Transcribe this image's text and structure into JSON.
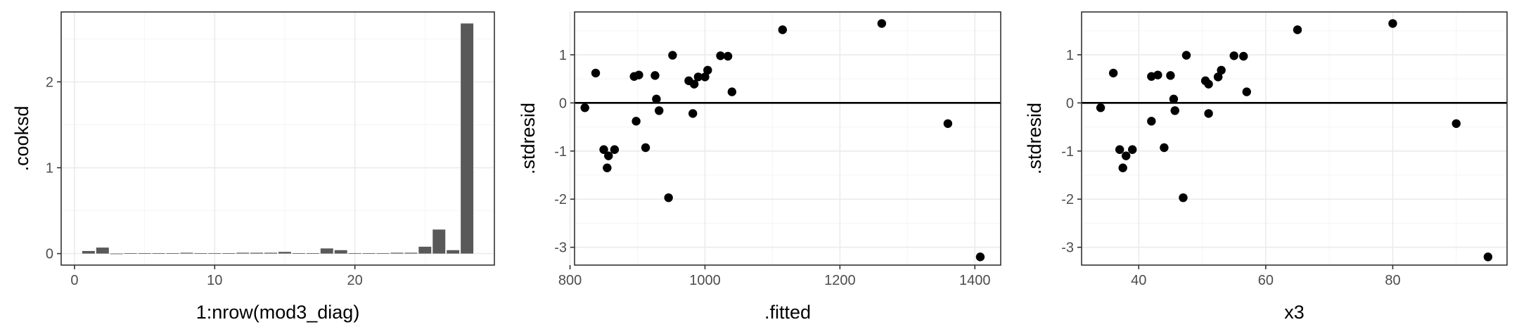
{
  "chart_data": [
    {
      "type": "bar",
      "xlabel": "1:nrow(mod3_diag)",
      "ylabel": ".cooksd",
      "x": [
        1,
        2,
        3,
        4,
        5,
        6,
        7,
        8,
        9,
        10,
        11,
        12,
        13,
        14,
        15,
        16,
        17,
        18,
        19,
        20,
        21,
        22,
        23,
        24,
        25,
        26,
        27,
        28
      ],
      "values": [
        0.03,
        0.07,
        0.0,
        0.005,
        0.005,
        0.005,
        0.005,
        0.01,
        0.005,
        0.005,
        0.005,
        0.01,
        0.01,
        0.01,
        0.02,
        0.005,
        0.005,
        0.06,
        0.04,
        0.005,
        0.005,
        0.005,
        0.01,
        0.01,
        0.08,
        0.28,
        0.04,
        2.68
      ],
      "xlim": [
        -0.95,
        29.95
      ],
      "ylim": [
        -0.134,
        2.814
      ],
      "xticks": [
        0,
        10,
        20
      ],
      "xtick_labels": [
        "0",
        "10",
        "20"
      ],
      "yticks": [
        0,
        1,
        2
      ],
      "ytick_labels": [
        "0",
        "1",
        "2"
      ],
      "grid": true
    },
    {
      "type": "scatter",
      "xlabel": ".fitted",
      "ylabel": ".stdresid",
      "x": [
        822,
        838,
        850,
        855,
        857,
        866,
        895,
        898,
        902,
        912,
        926,
        928,
        932,
        946,
        952,
        976,
        982,
        984,
        990,
        1000,
        1004,
        1023,
        1034,
        1040,
        1115,
        1262,
        1360,
        1408
      ],
      "y": [
        -0.1,
        0.62,
        -0.97,
        -1.35,
        -1.1,
        -0.97,
        0.55,
        -0.38,
        0.58,
        -0.93,
        0.57,
        0.08,
        -0.16,
        -1.97,
        0.99,
        0.46,
        -0.22,
        0.39,
        0.54,
        0.54,
        0.68,
        0.98,
        0.97,
        0.23,
        1.52,
        1.65,
        -0.43,
        -3.2
      ],
      "xlim": [
        806.7,
        1438.3
      ],
      "ylim": [
        -3.37,
        1.89
      ],
      "xticks": [
        800,
        1000,
        1200,
        1400
      ],
      "xtick_labels": [
        "800",
        "1000",
        "1200",
        "1400"
      ],
      "yticks": [
        -3,
        -2,
        -1,
        0,
        1
      ],
      "ytick_labels": [
        "-3",
        "-2",
        "-1",
        "0",
        "1"
      ],
      "hline": 0,
      "grid": true
    },
    {
      "type": "scatter",
      "xlabel": "x3",
      "ylabel": ".stdresid",
      "x": [
        34,
        36,
        37,
        37.5,
        38,
        39,
        42,
        42,
        43,
        44,
        45,
        45.5,
        45.7,
        47,
        47.5,
        50.5,
        51,
        51,
        52.5,
        52.5,
        53,
        55,
        56.5,
        57,
        65,
        80,
        90,
        95
      ],
      "y": [
        -0.1,
        0.62,
        -0.97,
        -1.35,
        -1.1,
        -0.97,
        0.55,
        -0.38,
        0.58,
        -0.93,
        0.57,
        0.08,
        -0.16,
        -1.97,
        0.99,
        0.46,
        -0.22,
        0.39,
        0.54,
        0.54,
        0.68,
        0.98,
        0.97,
        0.23,
        1.52,
        1.65,
        -0.43,
        -3.2
      ],
      "xlim": [
        31.0,
        98.0
      ],
      "ylim": [
        -3.37,
        1.89
      ],
      "xticks": [
        40,
        60,
        80
      ],
      "xtick_labels": [
        "40",
        "60",
        "80"
      ],
      "yticks": [
        -3,
        -2,
        -1,
        0,
        1
      ],
      "ytick_labels": [
        "-3",
        "-2",
        "-1",
        "0",
        "1"
      ],
      "hline": 0,
      "grid": true
    }
  ],
  "style": {
    "bar_color": "#595959",
    "point_color": "#000000",
    "grid_major": "#ebebeb",
    "grid_minor": "#f5f5f5",
    "panel_border": "#333333",
    "tick_text": "#4d4d4d",
    "zero_line": "#000000"
  }
}
